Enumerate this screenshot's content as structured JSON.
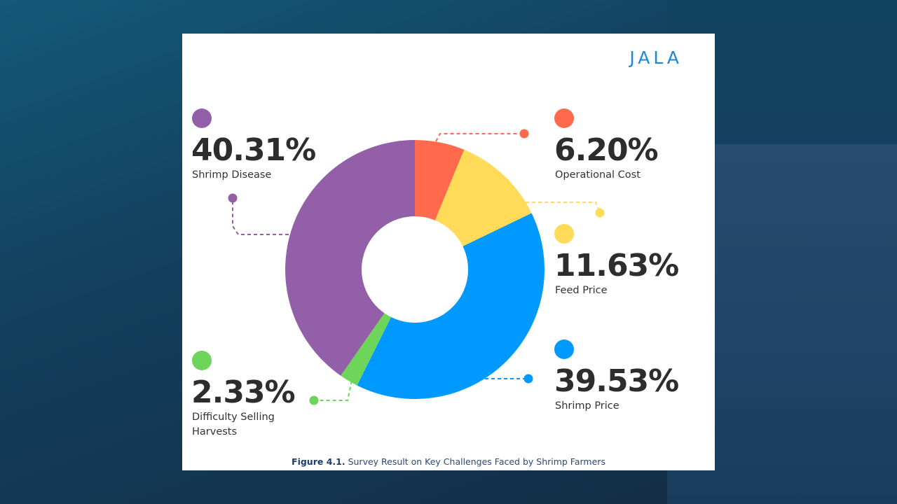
{
  "brand": "JALA",
  "caption": {
    "figure_label": "Figure 4.1.",
    "text": " Survey Result on Key Challenges Faced by Shrimp Farmers"
  },
  "chart_data": {
    "type": "pie",
    "donut": true,
    "title": "Survey Result on Key Challenges Faced by Shrimp Farmers",
    "slices": [
      {
        "key": "operational",
        "label": "Operational Cost",
        "value": 6.2,
        "display": "6.20%",
        "color": "#ff6a4c"
      },
      {
        "key": "feed",
        "label": "Feed Price",
        "value": 11.63,
        "display": "11.63%",
        "color": "#ffdb58"
      },
      {
        "key": "shrimpprice",
        "label": "Shrimp Price",
        "value": 39.53,
        "display": "39.53%",
        "color": "#0099ff"
      },
      {
        "key": "selling",
        "label": "Difficulty Selling Harvests",
        "label_lines": [
          "Difficulty Selling",
          "Harvests"
        ],
        "value": 2.33,
        "display": "2.33%",
        "color": "#6dd65a"
      },
      {
        "key": "disease",
        "label": "Shrimp Disease",
        "value": 40.31,
        "display": "40.31%",
        "color": "#935fa9"
      }
    ]
  }
}
